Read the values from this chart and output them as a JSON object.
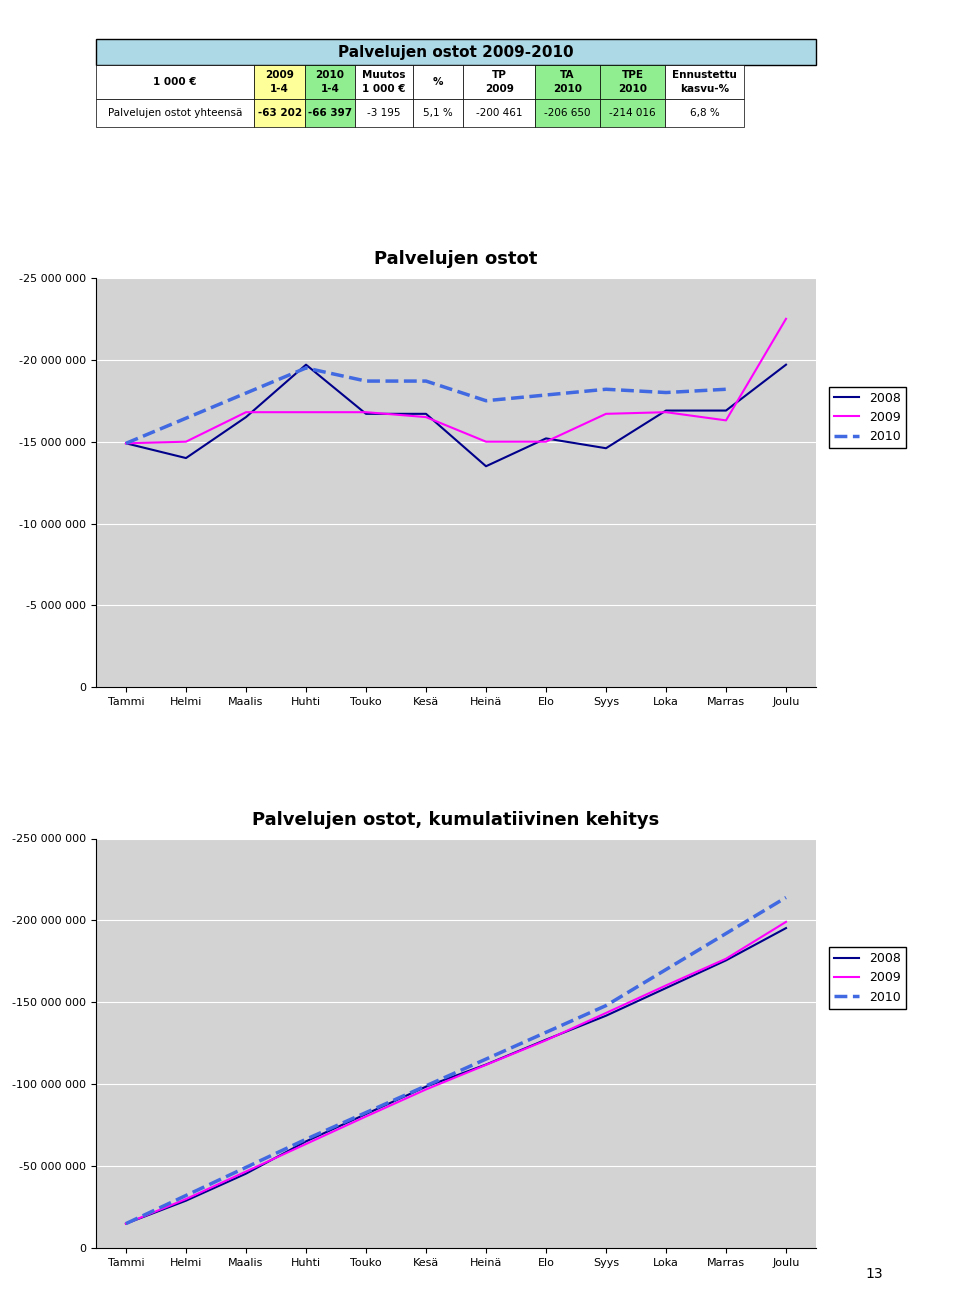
{
  "title_table": "Palvelujen ostot 2009-2010",
  "table_header_bg": "#add8e6",
  "col_2009_bg": "#ffff99",
  "col_2010_bg": "#90ee90",
  "col_ta_bg": "#90ee90",
  "col_tpe_bg": "#90ee90",
  "table_row": [
    "Palvelujen ostot yhteensä",
    "-63 202",
    "-66 397",
    "-3 195",
    "5,1 %",
    "-200 461",
    "-206 650",
    "-214 016",
    "6,8 %"
  ],
  "months": [
    "Tammi",
    "Helmi",
    "Maalis",
    "Huhti",
    "Touko",
    "Kesä",
    "Heinä",
    "Elo",
    "Syys",
    "Loka",
    "Marras",
    "Joulu"
  ],
  "chart1_title": "Palvelujen ostot",
  "chart1_2008": [
    -14900000,
    -14000000,
    -16500000,
    -19700000,
    -16700000,
    -16700000,
    -13500000,
    -15200000,
    -14600000,
    -16900000,
    -16900000,
    -19700000
  ],
  "chart1_2009": [
    -14900000,
    -15000000,
    -16800000,
    -16800000,
    -16800000,
    -16500000,
    -15000000,
    -15000000,
    -16700000,
    -16800000,
    -16300000,
    -22500000
  ],
  "chart1_2010": [
    -14900000,
    null,
    null,
    -19500000,
    -18700000,
    -18700000,
    -17500000,
    null,
    -18200000,
    -18000000,
    -18200000,
    null
  ],
  "chart2_title": "Palvelujen ostot, kumulatiivinen kehitys",
  "chart2_2008": [
    -14900000,
    -28900000,
    -45400000,
    -65100000,
    -81800000,
    -98500000,
    -112000000,
    -127200000,
    -141800000,
    -158700000,
    -175600000,
    -195300000
  ],
  "chart2_2009": [
    -14900000,
    -29900000,
    -46700000,
    -63500000,
    -80300000,
    -96800000,
    -111800000,
    -126800000,
    -143500000,
    -160300000,
    -176600000,
    -199100000
  ],
  "chart2_2010": [
    -14900000,
    null,
    null,
    -66397000,
    null,
    -99000000,
    null,
    null,
    -148000000,
    null,
    -192000000,
    -214000000
  ],
  "color_2008": "#00008B",
  "color_2009": "#FF00FF",
  "color_2010": "#4169E1",
  "chart1_ylim": [
    -25000000,
    0
  ],
  "chart1_yticks": [
    -25000000,
    -20000000,
    -15000000,
    -10000000,
    -5000000,
    0
  ],
  "chart2_ylim": [
    -250000000,
    0
  ],
  "chart2_yticks": [
    -250000000,
    -200000000,
    -150000000,
    -100000000,
    -50000000,
    0
  ],
  "bg_color": "#d3d3d3",
  "page_bg": "#ffffff",
  "page_number": "13"
}
